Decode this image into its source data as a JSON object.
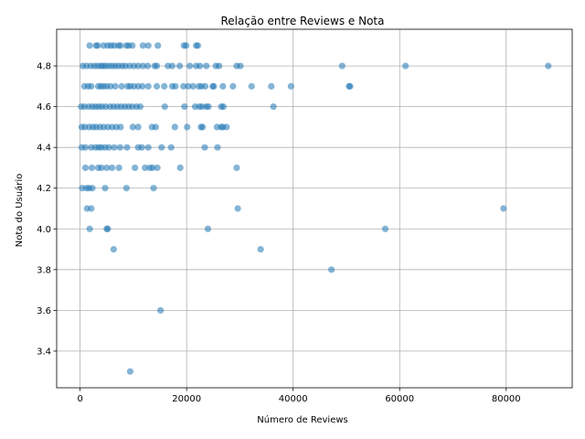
{
  "chart_data": {
    "type": "scatter",
    "title": "Relação entre Reviews e Nota",
    "xlabel": "Número de Reviews",
    "ylabel": "Nota do Usuário",
    "xlim": [
      -4400,
      92400
    ],
    "ylim": [
      3.22,
      4.98
    ],
    "xticks": [
      0,
      20000,
      40000,
      60000,
      80000
    ],
    "xtick_labels": [
      "0",
      "20000",
      "40000",
      "60000",
      "80000"
    ],
    "yticks": [
      3.4,
      3.6,
      3.8,
      4.0,
      4.2,
      4.4,
      4.6,
      4.8
    ],
    "ytick_labels": [
      "3.4",
      "3.6",
      "3.8",
      "4.0",
      "4.2",
      "4.4",
      "4.6",
      "4.8"
    ],
    "grid": true,
    "marker_color": "#1f77b4",
    "marker_alpha": 0.55,
    "series": [
      {
        "points": [
          [
            1800,
            4.9
          ],
          [
            3000,
            4.9
          ],
          [
            3300,
            4.9
          ],
          [
            4400,
            4.9
          ],
          [
            5200,
            4.9
          ],
          [
            5800,
            4.9
          ],
          [
            6400,
            4.9
          ],
          [
            7200,
            4.9
          ],
          [
            7600,
            4.9
          ],
          [
            8700,
            4.9
          ],
          [
            9100,
            4.9
          ],
          [
            9800,
            4.9
          ],
          [
            11800,
            4.9
          ],
          [
            12800,
            4.9
          ],
          [
            14600,
            4.9
          ],
          [
            19500,
            4.9
          ],
          [
            19900,
            4.9
          ],
          [
            21800,
            4.9
          ],
          [
            22100,
            4.9
          ],
          [
            500,
            4.8
          ],
          [
            1200,
            4.8
          ],
          [
            2000,
            4.8
          ],
          [
            2700,
            4.8
          ],
          [
            3300,
            4.8
          ],
          [
            3900,
            4.8
          ],
          [
            4300,
            4.8
          ],
          [
            4800,
            4.8
          ],
          [
            5400,
            4.8
          ],
          [
            6000,
            4.8
          ],
          [
            6600,
            4.8
          ],
          [
            7200,
            4.8
          ],
          [
            7900,
            4.8
          ],
          [
            8500,
            4.8
          ],
          [
            9300,
            4.8
          ],
          [
            10100,
            4.8
          ],
          [
            10900,
            4.8
          ],
          [
            11800,
            4.8
          ],
          [
            12700,
            4.8
          ],
          [
            14000,
            4.8
          ],
          [
            14400,
            4.8
          ],
          [
            16500,
            4.8
          ],
          [
            17300,
            4.8
          ],
          [
            18700,
            4.8
          ],
          [
            20600,
            4.8
          ],
          [
            21800,
            4.8
          ],
          [
            22500,
            4.8
          ],
          [
            23700,
            4.8
          ],
          [
            25500,
            4.8
          ],
          [
            26100,
            4.8
          ],
          [
            29400,
            4.8
          ],
          [
            30100,
            4.8
          ],
          [
            49200,
            4.8
          ],
          [
            61100,
            4.8
          ],
          [
            87900,
            4.8
          ],
          [
            800,
            4.7
          ],
          [
            1500,
            4.7
          ],
          [
            2100,
            4.7
          ],
          [
            3400,
            4.7
          ],
          [
            3900,
            4.7
          ],
          [
            4400,
            4.7
          ],
          [
            5000,
            4.7
          ],
          [
            5700,
            4.7
          ],
          [
            6600,
            4.7
          ],
          [
            7800,
            4.7
          ],
          [
            8900,
            4.7
          ],
          [
            9400,
            4.7
          ],
          [
            10100,
            4.7
          ],
          [
            10900,
            4.7
          ],
          [
            11700,
            4.7
          ],
          [
            12800,
            4.7
          ],
          [
            14400,
            4.7
          ],
          [
            15800,
            4.7
          ],
          [
            17300,
            4.7
          ],
          [
            17900,
            4.7
          ],
          [
            19400,
            4.7
          ],
          [
            20300,
            4.7
          ],
          [
            21200,
            4.7
          ],
          [
            22300,
            4.7
          ],
          [
            22800,
            4.7
          ],
          [
            23500,
            4.7
          ],
          [
            24900,
            4.7
          ],
          [
            25100,
            4.7
          ],
          [
            26800,
            4.7
          ],
          [
            28700,
            4.7
          ],
          [
            32200,
            4.7
          ],
          [
            35900,
            4.7
          ],
          [
            39600,
            4.7
          ],
          [
            50500,
            4.7
          ],
          [
            50700,
            4.7
          ],
          [
            200,
            4.6
          ],
          [
            800,
            4.6
          ],
          [
            1600,
            4.6
          ],
          [
            2300,
            4.6
          ],
          [
            2900,
            4.6
          ],
          [
            3500,
            4.6
          ],
          [
            4100,
            4.6
          ],
          [
            4800,
            4.6
          ],
          [
            5600,
            4.6
          ],
          [
            6300,
            4.6
          ],
          [
            7000,
            4.6
          ],
          [
            7700,
            4.6
          ],
          [
            8400,
            4.6
          ],
          [
            9100,
            4.6
          ],
          [
            9800,
            4.6
          ],
          [
            10600,
            4.6
          ],
          [
            11300,
            4.6
          ],
          [
            15900,
            4.6
          ],
          [
            19600,
            4.6
          ],
          [
            21600,
            4.6
          ],
          [
            22400,
            4.6
          ],
          [
            22900,
            4.6
          ],
          [
            23700,
            4.6
          ],
          [
            24100,
            4.6
          ],
          [
            26500,
            4.6
          ],
          [
            26900,
            4.6
          ],
          [
            36300,
            4.6
          ],
          [
            300,
            4.5
          ],
          [
            900,
            4.5
          ],
          [
            1700,
            4.5
          ],
          [
            2400,
            4.5
          ],
          [
            3000,
            4.5
          ],
          [
            3700,
            4.5
          ],
          [
            4400,
            4.5
          ],
          [
            5200,
            4.5
          ],
          [
            6000,
            4.5
          ],
          [
            6800,
            4.5
          ],
          [
            7600,
            4.5
          ],
          [
            9900,
            4.5
          ],
          [
            10900,
            4.5
          ],
          [
            13500,
            4.5
          ],
          [
            14200,
            4.5
          ],
          [
            17800,
            4.5
          ],
          [
            20100,
            4.5
          ],
          [
            22700,
            4.5
          ],
          [
            23000,
            4.5
          ],
          [
            25700,
            4.5
          ],
          [
            26500,
            4.5
          ],
          [
            26800,
            4.5
          ],
          [
            27500,
            4.5
          ],
          [
            300,
            4.4
          ],
          [
            1000,
            4.4
          ],
          [
            2100,
            4.4
          ],
          [
            2900,
            4.4
          ],
          [
            3500,
            4.4
          ],
          [
            4000,
            4.4
          ],
          [
            4700,
            4.4
          ],
          [
            5400,
            4.4
          ],
          [
            6400,
            4.4
          ],
          [
            7500,
            4.4
          ],
          [
            8800,
            4.4
          ],
          [
            10900,
            4.4
          ],
          [
            11600,
            4.4
          ],
          [
            12800,
            4.4
          ],
          [
            15300,
            4.4
          ],
          [
            17100,
            4.4
          ],
          [
            23400,
            4.4
          ],
          [
            25800,
            4.4
          ],
          [
            1000,
            4.3
          ],
          [
            2200,
            4.3
          ],
          [
            3400,
            4.3
          ],
          [
            4000,
            4.3
          ],
          [
            5000,
            4.3
          ],
          [
            6000,
            4.3
          ],
          [
            7300,
            4.3
          ],
          [
            10300,
            4.3
          ],
          [
            12200,
            4.3
          ],
          [
            13100,
            4.3
          ],
          [
            13600,
            4.3
          ],
          [
            14500,
            4.3
          ],
          [
            18800,
            4.3
          ],
          [
            29400,
            4.3
          ],
          [
            400,
            4.2
          ],
          [
            1200,
            4.2
          ],
          [
            1700,
            4.2
          ],
          [
            2300,
            4.2
          ],
          [
            4700,
            4.2
          ],
          [
            8700,
            4.2
          ],
          [
            13800,
            4.2
          ],
          [
            1300,
            4.1
          ],
          [
            2100,
            4.1
          ],
          [
            29600,
            4.1
          ],
          [
            79500,
            4.1
          ],
          [
            1800,
            4.0
          ],
          [
            5000,
            4.0
          ],
          [
            5200,
            4.0
          ],
          [
            24000,
            4.0
          ],
          [
            57300,
            4.0
          ],
          [
            6300,
            3.9
          ],
          [
            33900,
            3.9
          ],
          [
            47200,
            3.8
          ],
          [
            15100,
            3.6
          ],
          [
            9400,
            3.3
          ]
        ]
      }
    ]
  }
}
